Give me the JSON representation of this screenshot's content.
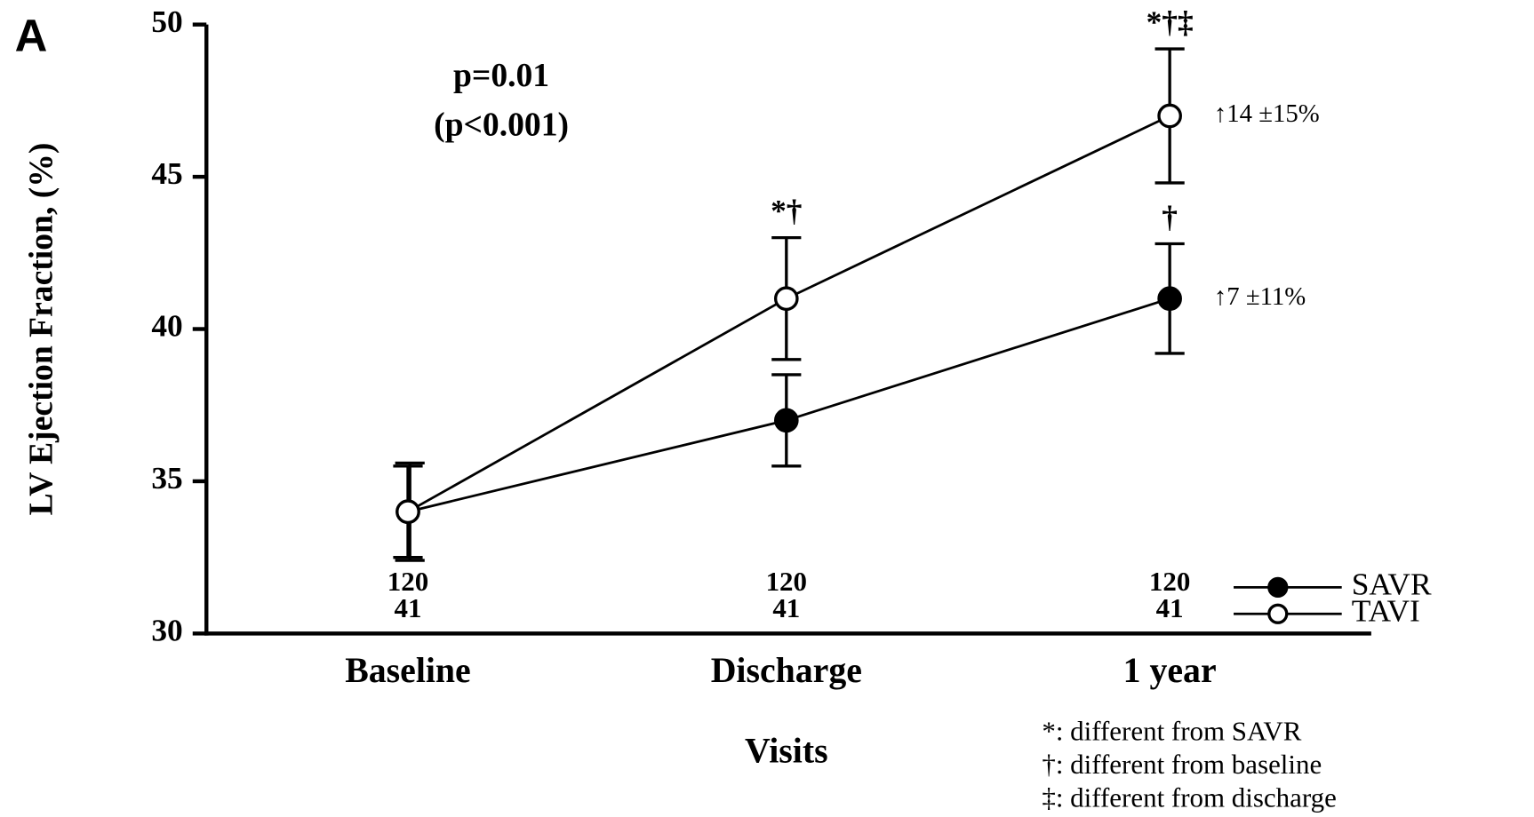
{
  "chart_data": {
    "type": "line",
    "panel_label": "A",
    "y_label": "LV Ejection Fraction, (%)",
    "x_label": "Visits",
    "p_value": "p=0.01",
    "p_value_2": "(p<0.001)",
    "categories": [
      "Baseline",
      "Discharge",
      "1 year"
    ],
    "ylim": [
      30,
      50
    ],
    "yticks": [
      30,
      35,
      40,
      45,
      50
    ],
    "series": [
      {
        "name": "SAVR",
        "color": "#000000",
        "marker_fill": "#000000",
        "values": [
          34,
          37,
          41
        ],
        "errors": [
          1.6,
          1.5,
          1.8
        ],
        "n": [
          120,
          120,
          120
        ],
        "point_labels": [
          null,
          null,
          "†"
        ],
        "change_label": "↑7 ±11%"
      },
      {
        "name": "TAVI",
        "color": "#000000",
        "marker_fill": "#ffffff",
        "values": [
          34,
          41,
          47
        ],
        "errors": [
          1.5,
          2,
          2.2
        ],
        "n": [
          41,
          41,
          41
        ],
        "point_labels": [
          null,
          "*†",
          "*†‡"
        ],
        "change_label": "↑14 ±15%"
      }
    ],
    "footnotes": [
      "*: different from SAVR",
      "†: different from baseline",
      "‡: different from discharge"
    ]
  }
}
